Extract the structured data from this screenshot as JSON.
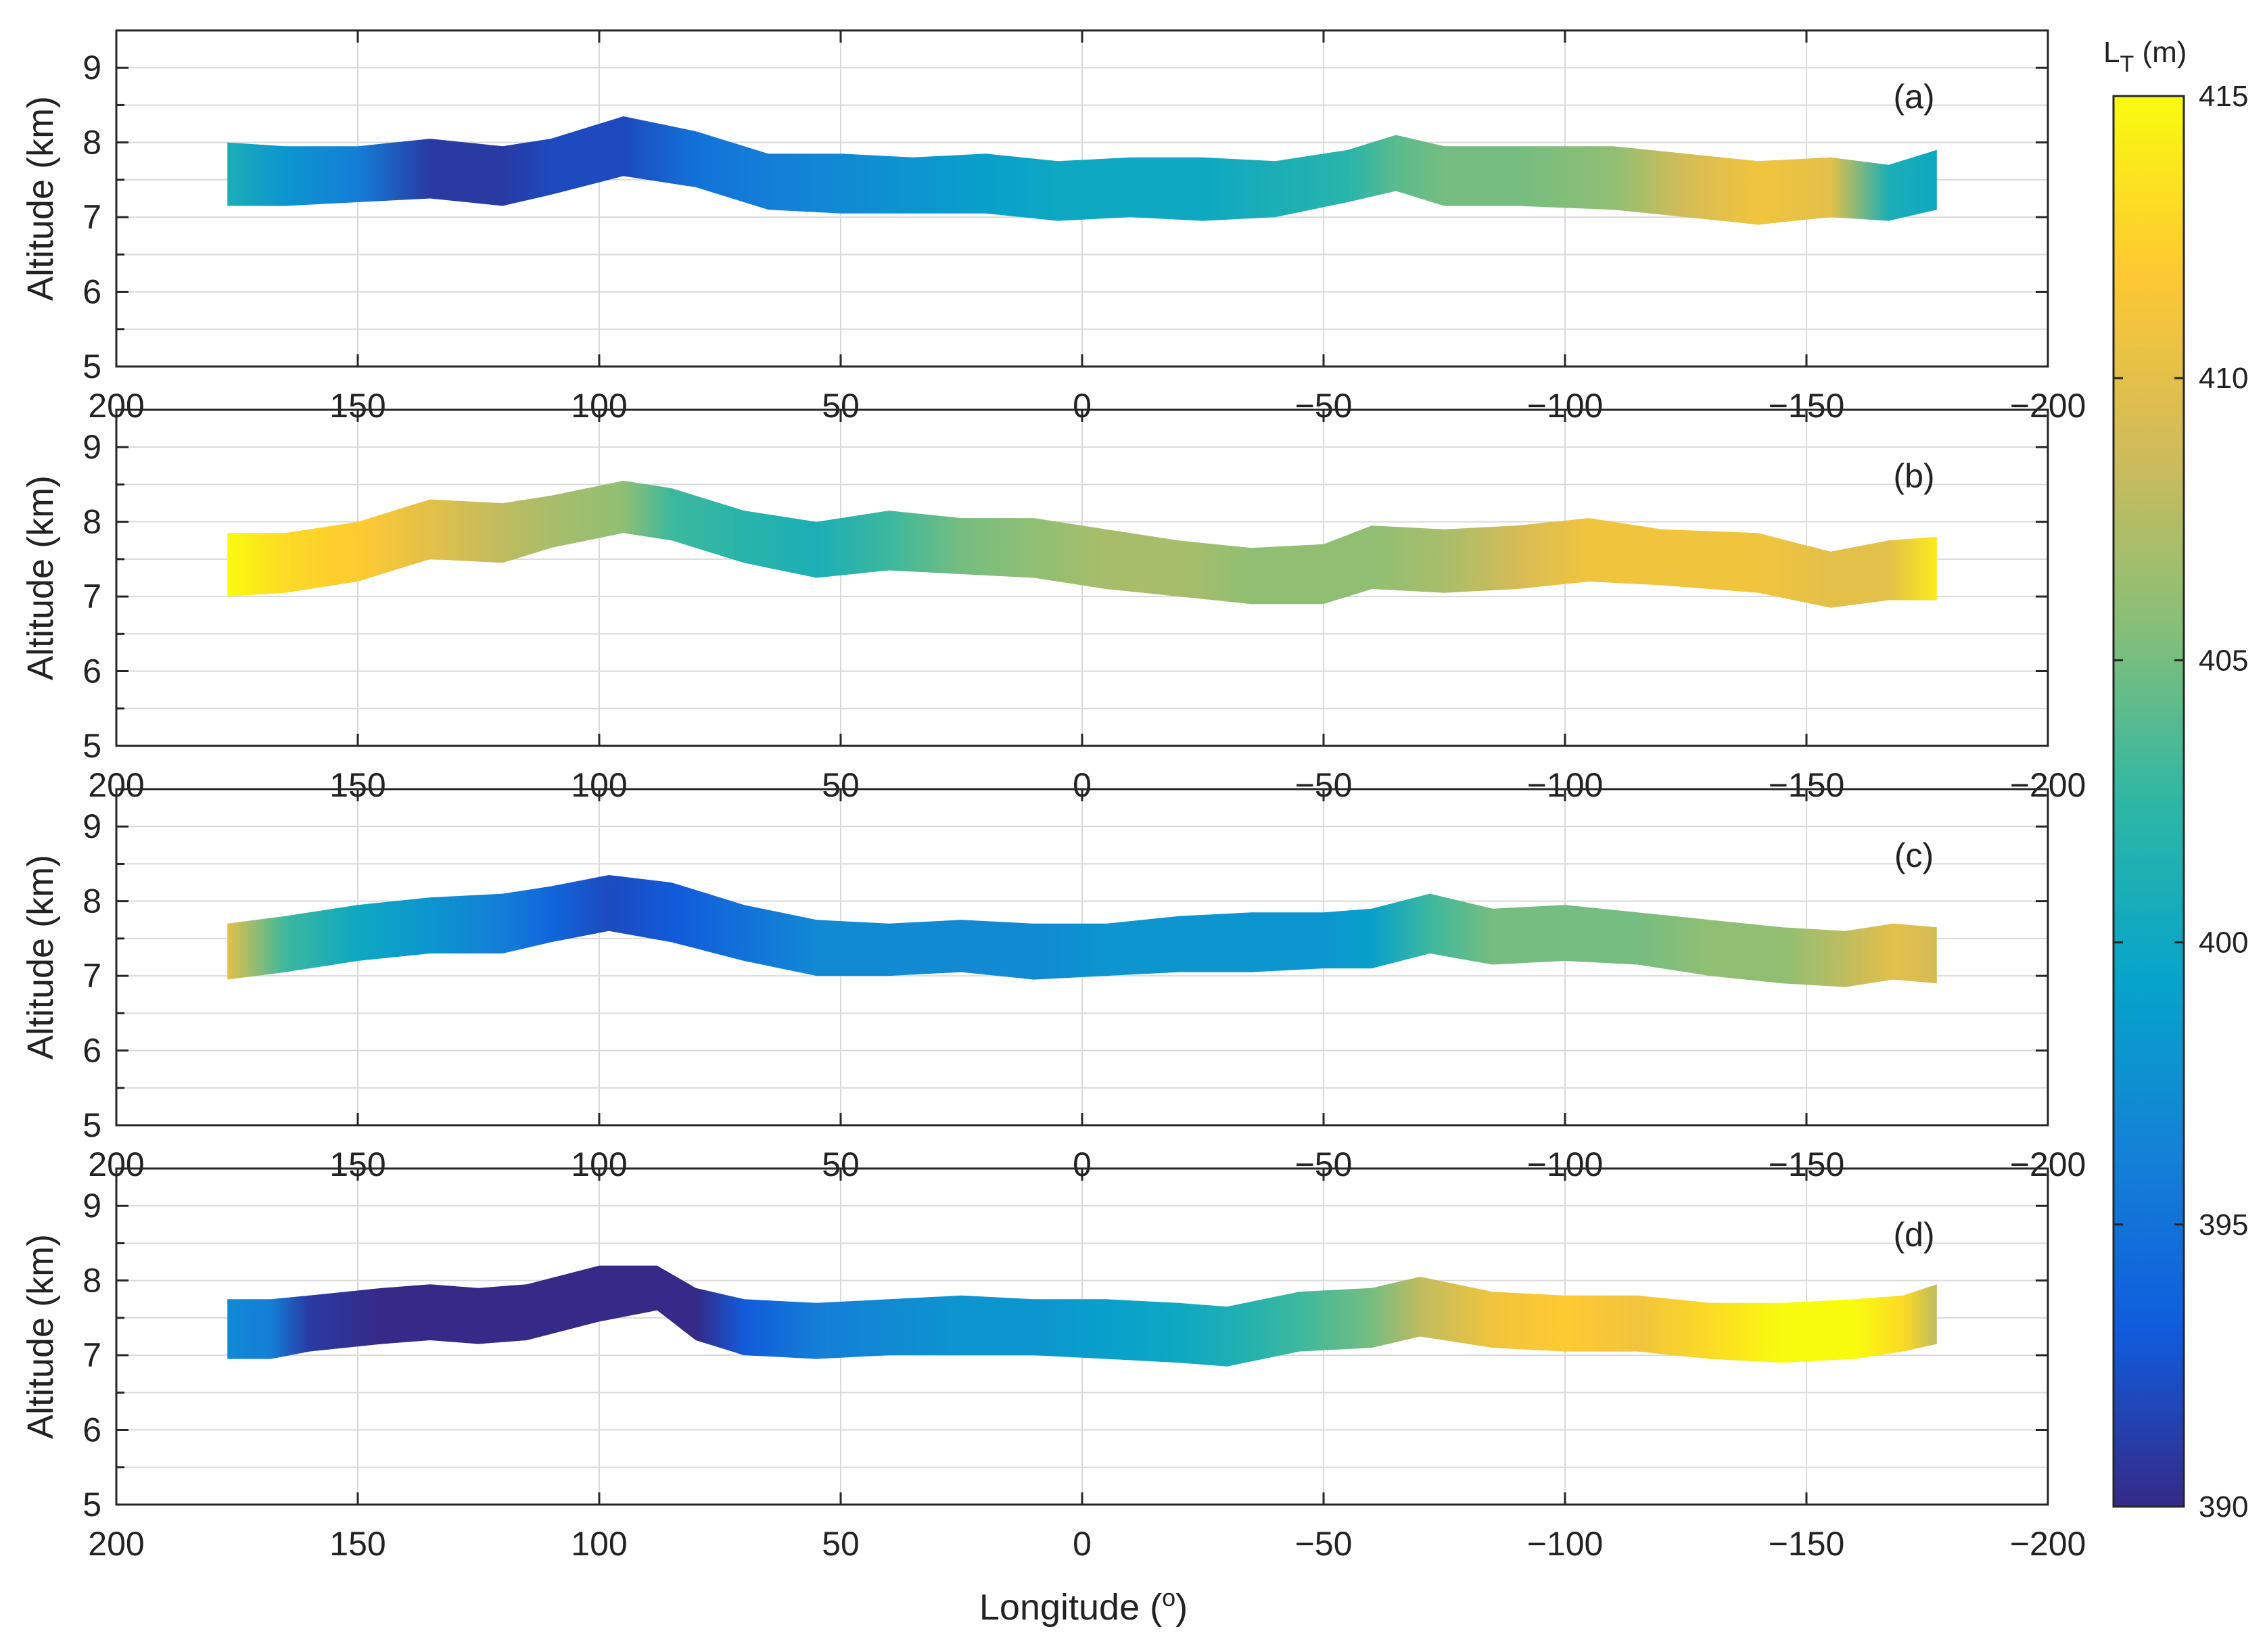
{
  "chart_data": {
    "type": "band",
    "xlabel_prefix": "Longitude (",
    "xlabel_unit": "o",
    "xlabel_suffix": ")",
    "ylabel": "Altitude (km)",
    "xlim": [
      200,
      -200
    ],
    "ylim": [
      5,
      9.5
    ],
    "xticks": [
      200,
      150,
      100,
      50,
      0,
      -50,
      -100,
      -150,
      -200
    ],
    "xtick_labels": [
      "200",
      "150",
      "100",
      "50",
      "0",
      "−50",
      "−100",
      "−150",
      "−200"
    ],
    "yticks": [
      5,
      6,
      7,
      8,
      9
    ],
    "ytick_labels": [
      "5",
      "6",
      "7",
      "8",
      "9"
    ],
    "grid": true,
    "colorbar": {
      "title_main": "L",
      "title_sub": "T",
      "title_unit": " (m)",
      "min": 390,
      "max": 415,
      "ticks": [
        390,
        395,
        400,
        405,
        410,
        415
      ],
      "tick_labels": [
        "390",
        "395",
        "400",
        "405",
        "410",
        "415"
      ],
      "colormap": "parula",
      "colors": [
        "#352a87",
        "#0f5cdd",
        "#1481d6",
        "#06a4ca",
        "#2eb7a4",
        "#87bf77",
        "#d1bb59",
        "#fec832",
        "#f9fb0e"
      ]
    },
    "panels": [
      {
        "label": "(a)",
        "lon": [
          177,
          165,
          150,
          135,
          120,
          110,
          95,
          80,
          65,
          50,
          35,
          20,
          5,
          -10,
          -25,
          -40,
          -55,
          -65,
          -75,
          -90,
          -110,
          -125,
          -140,
          -155,
          -167,
          -177
        ],
        "upper": [
          8.0,
          7.95,
          7.95,
          8.05,
          7.95,
          8.05,
          8.35,
          8.15,
          7.85,
          7.85,
          7.8,
          7.85,
          7.75,
          7.8,
          7.8,
          7.75,
          7.9,
          8.1,
          7.95,
          7.95,
          7.95,
          7.85,
          7.75,
          7.8,
          7.7,
          7.9
        ],
        "lower": [
          7.15,
          7.15,
          7.2,
          7.25,
          7.15,
          7.3,
          7.55,
          7.4,
          7.1,
          7.05,
          7.05,
          7.05,
          6.95,
          7.0,
          6.95,
          7.0,
          7.2,
          7.35,
          7.15,
          7.15,
          7.1,
          7.0,
          6.9,
          7.0,
          6.95,
          7.1
        ],
        "LT": [
          401,
          398,
          396,
          391,
          391,
          392,
          392,
          395,
          396,
          397,
          398,
          399,
          400,
          400,
          400,
          401,
          402,
          404,
          405,
          405,
          406,
          409,
          411,
          410,
          401,
          400
        ]
      },
      {
        "label": "(b)",
        "lon": [
          177,
          165,
          150,
          135,
          120,
          110,
          95,
          85,
          70,
          55,
          40,
          25,
          10,
          -5,
          -20,
          -35,
          -50,
          -60,
          -75,
          -90,
          -105,
          -120,
          -140,
          -155,
          -167,
          -177
        ],
        "upper": [
          7.85,
          7.85,
          8.0,
          8.3,
          8.25,
          8.35,
          8.55,
          8.45,
          8.15,
          8.0,
          8.15,
          8.05,
          8.05,
          7.9,
          7.75,
          7.65,
          7.7,
          7.95,
          7.9,
          7.95,
          8.05,
          7.9,
          7.85,
          7.6,
          7.75,
          7.8
        ],
        "lower": [
          7.0,
          7.05,
          7.2,
          7.5,
          7.45,
          7.65,
          7.85,
          7.75,
          7.45,
          7.25,
          7.35,
          7.3,
          7.25,
          7.1,
          7.0,
          6.9,
          6.9,
          7.1,
          7.05,
          7.1,
          7.2,
          7.15,
          7.05,
          6.85,
          6.95,
          6.95
        ],
        "LT": [
          415,
          413,
          412,
          410,
          408,
          407,
          406,
          403,
          402,
          401,
          403,
          405,
          406,
          407,
          407,
          406,
          406,
          406,
          407,
          409,
          411,
          411,
          411,
          410,
          410,
          414
        ]
      },
      {
        "label": "(c)",
        "lon": [
          177,
          165,
          150,
          135,
          120,
          110,
          98,
          85,
          70,
          55,
          40,
          25,
          10,
          -5,
          -20,
          -35,
          -50,
          -60,
          -72,
          -85,
          -100,
          -115,
          -130,
          -145,
          -158,
          -168,
          -177
        ],
        "upper": [
          7.7,
          7.8,
          7.95,
          8.05,
          8.1,
          8.2,
          8.35,
          8.25,
          7.95,
          7.75,
          7.7,
          7.75,
          7.7,
          7.7,
          7.8,
          7.85,
          7.85,
          7.9,
          8.1,
          7.9,
          7.95,
          7.85,
          7.75,
          7.65,
          7.6,
          7.7,
          7.65
        ],
        "lower": [
          6.95,
          7.05,
          7.2,
          7.3,
          7.3,
          7.45,
          7.6,
          7.45,
          7.2,
          7.0,
          7.0,
          7.05,
          6.95,
          7.0,
          7.05,
          7.05,
          7.1,
          7.1,
          7.3,
          7.15,
          7.2,
          7.15,
          7.0,
          6.9,
          6.85,
          6.95,
          6.9
        ],
        "LT": [
          410,
          403,
          400,
          398,
          396,
          394,
          392,
          393,
          395,
          397,
          397,
          397,
          397,
          398,
          398,
          398,
          398,
          399,
          403,
          405,
          405,
          405,
          406,
          406,
          408,
          410,
          409
        ]
      },
      {
        "label": "(d)",
        "lon": [
          177,
          168,
          160,
          145,
          135,
          125,
          115,
          100,
          88,
          80,
          70,
          55,
          40,
          25,
          10,
          -5,
          -20,
          -30,
          -45,
          -60,
          -70,
          -85,
          -100,
          -115,
          -130,
          -145,
          -160,
          -170,
          -177
        ],
        "upper": [
          7.75,
          7.75,
          7.8,
          7.9,
          7.95,
          7.9,
          7.95,
          8.2,
          8.2,
          7.9,
          7.75,
          7.7,
          7.75,
          7.8,
          7.75,
          7.75,
          7.7,
          7.65,
          7.85,
          7.9,
          8.05,
          7.85,
          7.8,
          7.8,
          7.7,
          7.7,
          7.75,
          7.8,
          7.95
        ],
        "lower": [
          6.95,
          6.95,
          7.05,
          7.15,
          7.2,
          7.15,
          7.2,
          7.45,
          7.6,
          7.2,
          7.0,
          6.95,
          7.0,
          7.0,
          7.0,
          6.95,
          6.9,
          6.85,
          7.05,
          7.1,
          7.25,
          7.1,
          7.05,
          7.05,
          6.95,
          6.9,
          6.95,
          7.05,
          7.15
        ],
        "LT": [
          397,
          396,
          391,
          390,
          390,
          390,
          390,
          390,
          390,
          390,
          393,
          396,
          397,
          398,
          398,
          399,
          400,
          401,
          403,
          405,
          408,
          411,
          412,
          411,
          413,
          415,
          415,
          413,
          408
        ]
      }
    ]
  }
}
